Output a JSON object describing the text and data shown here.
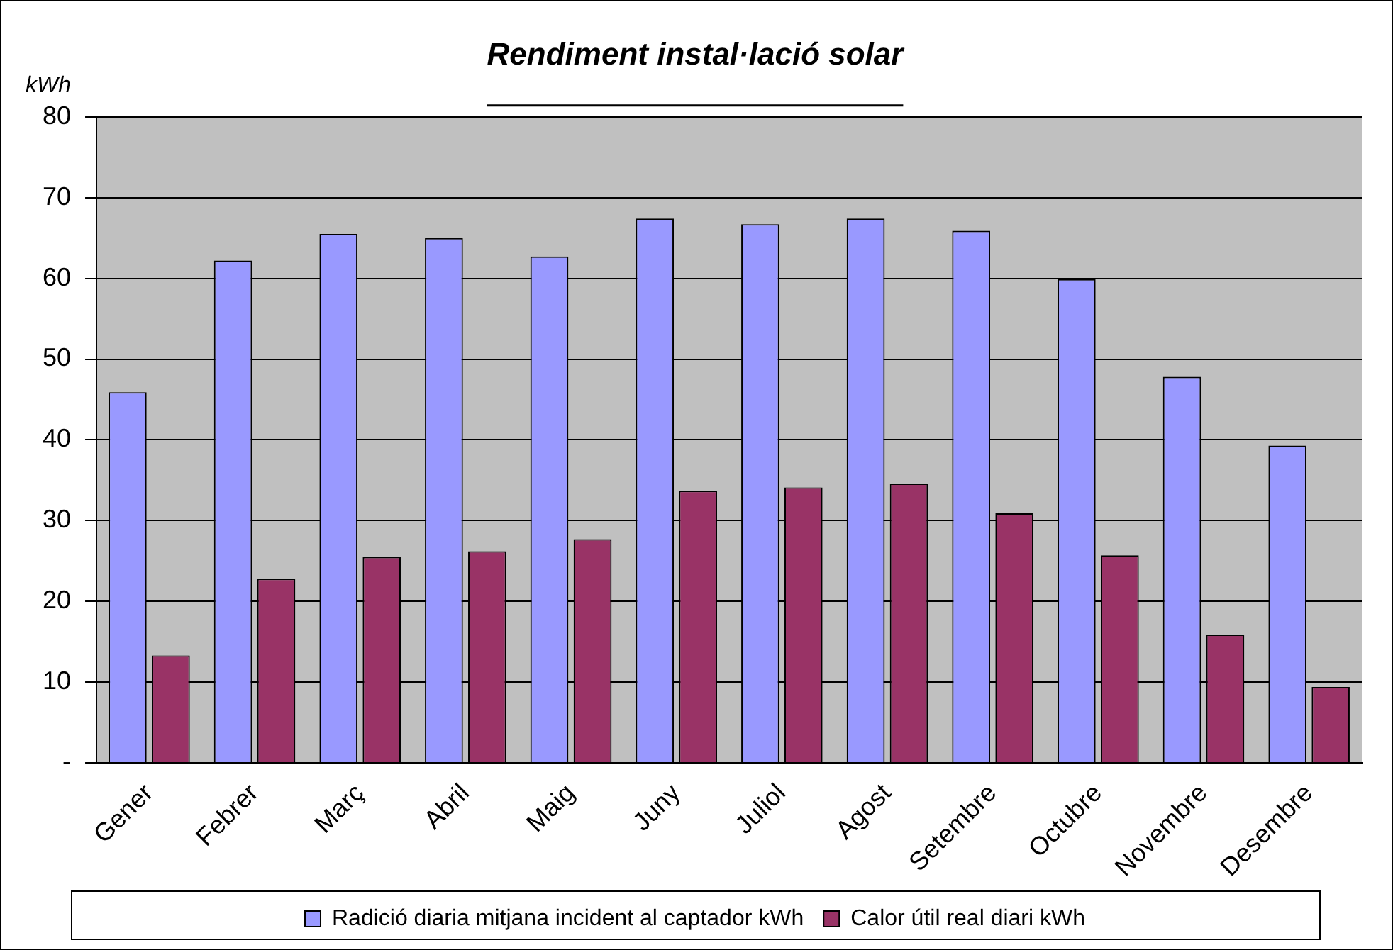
{
  "chart_data": {
    "type": "bar",
    "title": "Rendiment instal·lació solar",
    "ylabel": "kWh",
    "categories": [
      "Gener",
      "Febrer",
      "Març",
      "Abril",
      "Maig",
      "Juny",
      "Juliol",
      "Agost",
      "Setembre",
      "Octubre",
      "Novembre",
      "Desembre"
    ],
    "series": [
      {
        "name": "Radició diaria mitjana incident al captador kWh",
        "color": "#9999ff",
        "values": [
          45.9,
          62.2,
          65.5,
          65.0,
          62.7,
          67.4,
          66.7,
          67.4,
          65.9,
          59.9,
          47.8,
          39.3
        ]
      },
      {
        "name": "Calor útil real diari kWh",
        "color": "#993366",
        "values": [
          13.3,
          22.8,
          25.5,
          26.2,
          27.7,
          33.7,
          34.1,
          34.6,
          30.9,
          25.7,
          15.9,
          9.4
        ]
      }
    ],
    "ylim": [
      0,
      80
    ],
    "yticks": [
      {
        "value": 0,
        "label": "-"
      },
      10,
      20,
      30,
      40,
      50,
      60,
      70,
      80
    ],
    "grid": "y",
    "legend": "bottom"
  }
}
